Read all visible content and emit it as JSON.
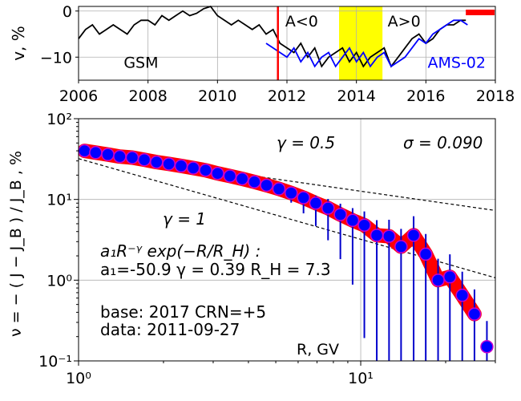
{
  "chart_data": [
    {
      "type": "line",
      "ylabel": "v, %",
      "xlim": [
        2006,
        2018
      ],
      "ylim": [
        -15,
        1
      ],
      "x_ticks": [
        "2006",
        "2008",
        "2010",
        "2012",
        "2014",
        "2016",
        "2018"
      ],
      "y_ticks": [
        "0",
        "−10"
      ],
      "grid": true,
      "labels": {
        "gsm": "GSM",
        "ams": "AMS-02",
        "a_neg": "A<0",
        "a_pos": "A>0"
      },
      "colors": {
        "gsm": "#000000",
        "ams": "#0000ff",
        "vline": "#ff0000",
        "band": "#ffff00",
        "bar": "#ff0000"
      },
      "vertical_line_x": 2011.74,
      "polarity_band": [
        2013.5,
        2014.75
      ],
      "red_bar_x": [
        2017.15,
        2018
      ],
      "series": [
        {
          "name": "GSM",
          "x": [
            2006.0,
            2006.2,
            2006.4,
            2006.6,
            2006.8,
            2007.0,
            2007.2,
            2007.4,
            2007.6,
            2007.8,
            2008.0,
            2008.2,
            2008.4,
            2008.6,
            2008.8,
            2009.0,
            2009.2,
            2009.4,
            2009.6,
            2009.8,
            2010.0,
            2010.2,
            2010.4,
            2010.6,
            2010.8,
            2011.0,
            2011.2,
            2011.4,
            2011.6,
            2011.8,
            2012.0,
            2012.2,
            2012.4,
            2012.6,
            2012.8,
            2013.0,
            2013.2,
            2013.4,
            2013.6,
            2013.8,
            2014.0,
            2014.2,
            2014.4,
            2014.6,
            2014.8,
            2015.0,
            2015.2,
            2015.4,
            2015.6,
            2015.8,
            2016.0,
            2016.2,
            2016.4,
            2016.6,
            2016.8,
            2017.0,
            2017.15
          ],
          "values": [
            -6,
            -4,
            -3,
            -5,
            -4,
            -3,
            -4,
            -5,
            -3,
            -2,
            -2,
            -3,
            -1,
            -2,
            -1,
            0,
            -1,
            -0.5,
            0.5,
            1,
            -1,
            -2,
            -3,
            -2,
            -3,
            -4,
            -3,
            -5,
            -4,
            -7,
            -8,
            -9,
            -7,
            -10,
            -8,
            -12,
            -10,
            -9,
            -8,
            -11,
            -9,
            -12,
            -10,
            -9,
            -8,
            -12,
            -10,
            -8,
            -6,
            -5,
            -7,
            -6,
            -4,
            -3,
            -3,
            -2,
            -2
          ]
        },
        {
          "name": "AMS-02",
          "x": [
            2011.4,
            2011.6,
            2011.8,
            2012.0,
            2012.2,
            2012.4,
            2012.6,
            2012.8,
            2013.0,
            2013.2,
            2013.4,
            2013.6,
            2013.8,
            2014.0,
            2014.2,
            2014.4,
            2014.6,
            2014.8,
            2015.0,
            2015.2,
            2015.4,
            2015.6,
            2015.8,
            2016.0,
            2016.2,
            2016.4,
            2016.6,
            2016.8,
            2017.0,
            2017.2
          ],
          "values": [
            -7,
            -8,
            -9,
            -10,
            -8,
            -11,
            -9,
            -12,
            -10,
            -9,
            -12,
            -10,
            -8,
            -11,
            -9,
            -12,
            -10,
            -9,
            -12,
            -11,
            -10,
            -8,
            -6,
            -7,
            -5,
            -4,
            -3,
            -2,
            -2,
            -3
          ]
        }
      ]
    },
    {
      "type": "scatter",
      "xlabel": "R, GV",
      "ylabel": "ν = − ( J − J_B ) / J_B , %",
      "xscale": "log",
      "yscale": "log",
      "xlim": [
        1,
        30
      ],
      "ylim": [
        0.1,
        100
      ],
      "x_ticks": [
        "10⁰",
        "10¹"
      ],
      "y_ticks": [
        "10⁻¹",
        "10⁰",
        "10¹",
        "10²"
      ],
      "grid": true,
      "colors": {
        "points": "#0000ff",
        "point_edge": "#cc00cc",
        "fit_band": "#ff0000",
        "errorbar": "#0000cc",
        "reference": "#000000"
      },
      "annotations": {
        "gamma_half": "γ = 0.5",
        "gamma_one": "γ = 1",
        "sigma": "σ = 0.090",
        "formula": "a₁R⁻ᵞ exp(−R/R_H) :",
        "fit_params": "a₁=-50.9  γ = 0.39  R_H =  7.3",
        "base": "base: 2017   CRN=+5",
        "data_date": "data: 2011-09-27"
      },
      "reference_lines": [
        {
          "gamma": 0.5,
          "x": [
            1,
            30
          ],
          "y": [
            40,
            7.3
          ]
        },
        {
          "gamma": 1,
          "x": [
            1,
            30
          ],
          "y": [
            32,
            1.07
          ]
        }
      ],
      "series": [
        {
          "name": "data",
          "x": [
            1.05,
            1.15,
            1.27,
            1.4,
            1.55,
            1.71,
            1.89,
            2.09,
            2.31,
            2.55,
            2.82,
            3.11,
            3.44,
            3.8,
            4.2,
            4.64,
            5.13,
            5.67,
            6.27,
            6.93,
            7.66,
            8.47,
            9.36,
            10.3,
            11.4,
            12.6,
            13.9,
            15.4,
            17.0,
            18.8,
            20.7,
            22.9,
            25.3,
            28.0
          ],
          "values": [
            40,
            38,
            36,
            34,
            33,
            31,
            29,
            27.5,
            26,
            24.5,
            23,
            21,
            19.5,
            18,
            16.5,
            15,
            13.5,
            12,
            10.5,
            9,
            7.8,
            6.5,
            5.5,
            4.8,
            3.6,
            3.5,
            2.6,
            3.6,
            2.1,
            1.0,
            1.1,
            0.65,
            0.38,
            0.15
          ]
        }
      ]
    }
  ]
}
